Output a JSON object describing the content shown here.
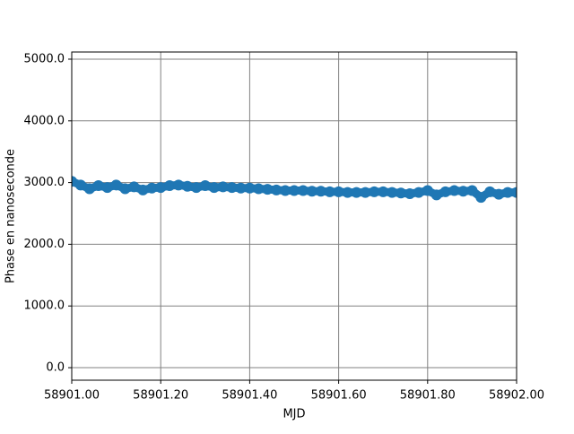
{
  "chart_data": {
    "type": "line",
    "marker": "o",
    "color": "#1f77b4",
    "xlabel": "MJD",
    "ylabel": "Phase en nanoseconde",
    "grid": true,
    "xlim": [
      58901.0,
      58902.0
    ],
    "xticks": [
      {
        "value": 58901.0,
        "label": "58901.00"
      },
      {
        "value": 58901.2,
        "label": "58901.20"
      },
      {
        "value": 58901.4,
        "label": "58901.40"
      },
      {
        "value": 58901.6,
        "label": "58901.60"
      },
      {
        "value": 58901.8,
        "label": "58901.80"
      },
      {
        "value": 58902.0,
        "label": "58902.00"
      }
    ],
    "ylim": [
      -203,
      5116
    ],
    "yticks": [
      {
        "value": 0,
        "label": "0.0"
      },
      {
        "value": 1000,
        "label": "1000.0"
      },
      {
        "value": 2000,
        "label": "2000.0"
      },
      {
        "value": 3000,
        "label": "3000.0"
      },
      {
        "value": 4000,
        "label": "4000.0"
      },
      {
        "value": 5000,
        "label": "5000.0"
      }
    ],
    "x": [
      58901.0,
      58901.02,
      58901.04,
      58901.06,
      58901.08,
      58901.1,
      58901.12,
      58901.14,
      58901.16,
      58901.18,
      58901.2,
      58901.22,
      58901.24,
      58901.26,
      58901.28,
      58901.3,
      58901.32,
      58901.34,
      58901.36,
      58901.38,
      58901.4,
      58901.42,
      58901.44,
      58901.46,
      58901.48,
      58901.5,
      58901.52,
      58901.54,
      58901.56,
      58901.58,
      58901.6,
      58901.62,
      58901.64,
      58901.66,
      58901.68,
      58901.7,
      58901.72,
      58901.74,
      58901.76,
      58901.78,
      58901.8,
      58901.82,
      58901.84,
      58901.86,
      58901.88,
      58901.9,
      58901.92,
      58901.94,
      58901.96,
      58901.98,
      58902.0
    ],
    "values": [
      3020,
      2960,
      2900,
      2950,
      2920,
      2960,
      2900,
      2930,
      2880,
      2910,
      2920,
      2950,
      2960,
      2940,
      2920,
      2950,
      2920,
      2930,
      2920,
      2910,
      2910,
      2900,
      2890,
      2880,
      2870,
      2870,
      2870,
      2860,
      2860,
      2850,
      2850,
      2840,
      2840,
      2840,
      2850,
      2850,
      2840,
      2830,
      2820,
      2840,
      2870,
      2800,
      2850,
      2870,
      2860,
      2870,
      2760,
      2850,
      2810,
      2840,
      2840
    ]
  }
}
